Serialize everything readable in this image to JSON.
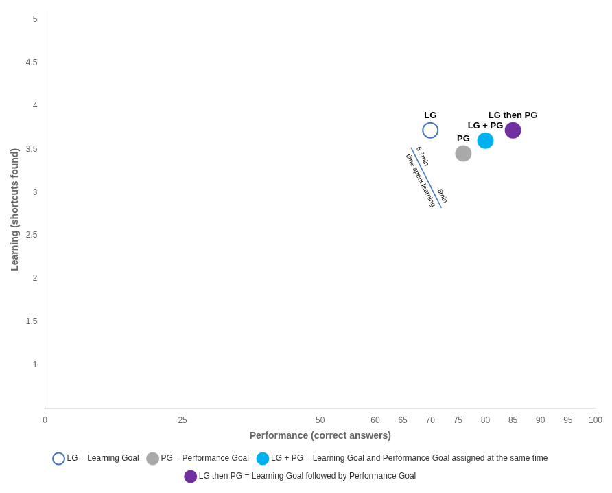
{
  "chart_data": {
    "type": "scatter",
    "xlabel": "Performance (correct answers)",
    "ylabel": "Learning (shortcuts found)",
    "xlim": [
      0,
      100
    ],
    "ylim": [
      0.5,
      5.1
    ],
    "xticks": [
      0,
      25,
      50,
      60,
      65,
      70,
      75,
      80,
      85,
      90,
      95,
      100
    ],
    "yticks": [
      1,
      1.5,
      2,
      2.5,
      3,
      3.5,
      4,
      4.5,
      5
    ],
    "grid": false,
    "legend": "bottom",
    "marker": "circle",
    "series": [
      {
        "name": "LG = Learning Goal",
        "label": "LG",
        "x": [
          70
        ],
        "values": [
          3.72
        ],
        "color": "white",
        "edge_color": "#4472C4"
      },
      {
        "name": "PG = Performance Goal",
        "label": "PG",
        "x": [
          76
        ],
        "values": [
          3.45
        ],
        "color": "#A9A9A9",
        "edge_color": "#A9A9A9"
      },
      {
        "name": "LG + PG = Learning Goal and Performance Goal assigned at the same time",
        "label": "LG + PG",
        "x": [
          80
        ],
        "values": [
          3.6
        ],
        "color": "#00B0F0",
        "edge_color": "#00B0F0"
      },
      {
        "name": "LG then PG = Learning Goal followed by Performance Goal",
        "label": "LG then PG",
        "x": [
          85
        ],
        "values": [
          3.72
        ],
        "color": "#7030A0",
        "edge_color": "#7030A0"
      }
    ],
    "annotations": {
      "x": [
        66.5,
        72.0
      ],
      "y": [
        3.52,
        2.82
      ],
      "color": "#4472C4",
      "start_label": "6.7min",
      "end_label": "6min",
      "text": "time spent learning"
    }
  }
}
